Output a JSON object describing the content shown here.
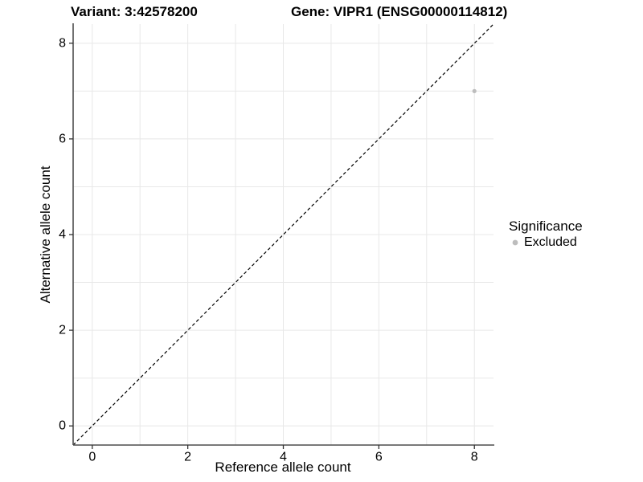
{
  "chart_data": {
    "type": "scatter",
    "titles": {
      "left": "Variant: 3:42578200",
      "right": "Gene: VIPR1 (ENSG00000114812)"
    },
    "xlabel": "Reference allele count",
    "ylabel": "Alternative allele count",
    "xlim": [
      -0.4,
      8.4
    ],
    "ylim": [
      -0.4,
      8.4
    ],
    "x_breaks": [
      0,
      2,
      4,
      6,
      8
    ],
    "y_breaks": [
      0,
      2,
      4,
      6,
      8
    ],
    "grid_positions": [
      0,
      1,
      2,
      3,
      4,
      5,
      6,
      7,
      8
    ],
    "grid": true,
    "points": [
      {
        "x": 8,
        "y": 7,
        "series": "Excluded"
      }
    ],
    "reference_line": {
      "type": "identity",
      "equation": "y = x",
      "style": "dashed"
    },
    "legend": {
      "title": "Significance",
      "position": "right",
      "items": [
        {
          "label": "Excluded",
          "color": "#bdbdbd"
        }
      ]
    },
    "colors": {
      "point": "#bdbdbd",
      "grid": "#e8e8e8",
      "axis_line": "#4d4d4d",
      "tick": "#333333",
      "text": "#000000",
      "dashed_line": "#000000"
    }
  }
}
